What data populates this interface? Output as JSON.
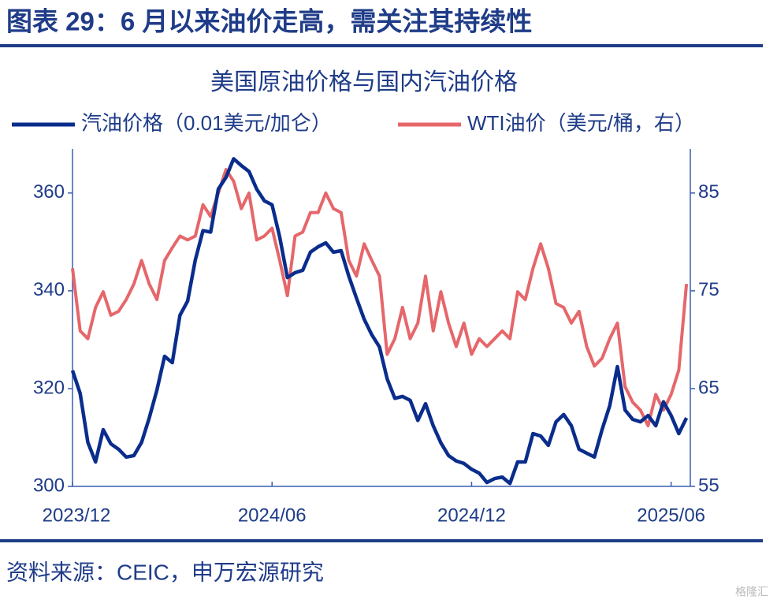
{
  "header": {
    "title": "图表 29：6 月以来油价走高，需关注其持续性"
  },
  "chart_data": {
    "type": "line",
    "title": "美国原油价格与国内汽油价格",
    "categories": [
      "2023/12",
      null,
      null,
      null,
      null,
      null,
      null,
      null,
      null,
      null,
      null,
      null,
      null,
      null,
      null,
      null,
      null,
      null,
      null,
      null,
      null,
      null,
      null,
      null,
      null,
      null,
      "2024/06",
      null,
      null,
      null,
      null,
      null,
      null,
      null,
      null,
      null,
      null,
      null,
      null,
      null,
      null,
      null,
      null,
      null,
      null,
      null,
      null,
      null,
      null,
      null,
      null,
      null,
      "2024/12",
      null,
      null,
      null,
      null,
      null,
      null,
      null,
      null,
      null,
      null,
      null,
      null,
      null,
      null,
      null,
      null,
      null,
      null,
      null,
      null,
      null,
      null,
      null,
      null,
      null,
      "2025/06",
      null,
      null
    ],
    "series": [
      {
        "name": "汽油价格（0.01美元/加仑）",
        "color": "#0a2d8c",
        "axis": "y",
        "values": [
          323.7,
          319,
          309,
          305,
          311.6,
          308.7,
          307.6,
          306,
          306.3,
          309,
          314,
          319.7,
          326.6,
          325.3,
          335,
          337.9,
          346.3,
          352.3,
          352,
          360.8,
          363.2,
          367,
          365.6,
          364.4,
          360.8,
          358.4,
          357.6,
          351,
          342.7,
          343.7,
          344.2,
          347.9,
          349,
          349.8,
          347.9,
          348.2,
          343,
          338.5,
          334.2,
          331,
          328.5,
          322,
          318,
          318.4,
          317.6,
          313.5,
          316.9,
          312.4,
          308.9,
          306.3,
          305.2,
          304.7,
          303.5,
          302.7,
          300.8,
          301.6,
          301.9,
          300.6,
          305,
          305,
          310.8,
          310.3,
          308.4,
          313.2,
          314.7,
          312.4,
          307.6,
          306.8,
          306,
          311.6,
          316.5,
          324.5,
          315.6,
          313.7,
          313.2,
          314.5,
          312.4,
          317.3,
          314.5,
          310.8,
          314
        ]
      },
      {
        "name": "WTI油价（美元/桶，右）",
        "color": "#e5676b",
        "axis": "y2",
        "values": [
          77.3,
          70.9,
          70.1,
          73.3,
          74.9,
          72.5,
          72.9,
          74.1,
          75.7,
          78.1,
          75.7,
          74.1,
          78.1,
          79.4,
          80.6,
          80.2,
          80.6,
          83.8,
          82.6,
          85,
          87.4,
          86.2,
          83.4,
          85,
          80.2,
          80.6,
          81.4,
          78.1,
          74.5,
          80.6,
          81,
          83,
          83,
          85,
          83.4,
          83,
          78.1,
          76.5,
          79.8,
          78.1,
          76.5,
          68.5,
          70.1,
          73.3,
          70.1,
          71.7,
          76.5,
          70.9,
          74.9,
          71.7,
          69.3,
          71.7,
          68.5,
          70.1,
          69.3,
          70.1,
          70.9,
          70.1,
          74.9,
          74.1,
          77.3,
          79.8,
          77.3,
          73.7,
          73.3,
          71.7,
          72.9,
          69.3,
          67.3,
          68.1,
          70.1,
          71.7,
          65.2,
          63.6,
          62.8,
          61.2,
          64.4,
          62.8,
          64.4,
          66.9,
          75.7
        ]
      }
    ],
    "ylim": [
      300,
      369
    ],
    "yticks": [
      300,
      320,
      340,
      360
    ],
    "y2lim": [
      55,
      89.5
    ],
    "y2ticks": [
      55,
      65,
      75,
      85
    ],
    "axis_color": "#3a5fb0",
    "grid": false
  },
  "footer": {
    "source": "资料来源：CEIC，申万宏源研究",
    "watermark": "格隆汇"
  }
}
